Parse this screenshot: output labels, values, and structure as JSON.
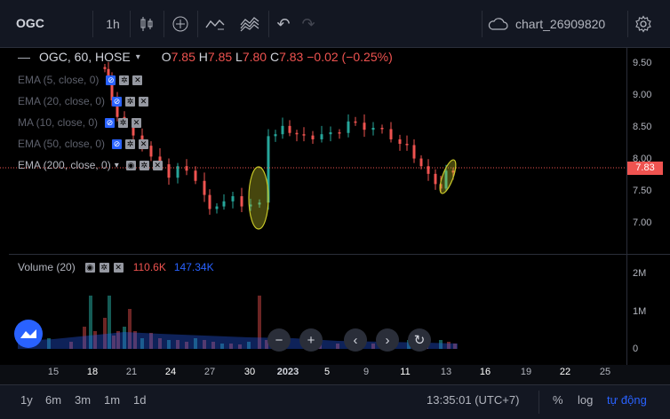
{
  "toolbar": {
    "symbol": "OGC",
    "interval": "1h",
    "chart_name": "chart_26909820"
  },
  "legend": {
    "symbol_line": "OGC, 60, HOSE",
    "open_label": "O",
    "open": "7.85",
    "high_label": "H",
    "high": "7.85",
    "low_label": "L",
    "low": "7.80",
    "close_label": "C",
    "close": "7.83",
    "change": "−0.02 (−0.25%)"
  },
  "indicators": [
    {
      "label": "EMA (5, close, 0)"
    },
    {
      "label": "EMA (20, close, 0)"
    },
    {
      "label": "MA (10, close, 0)"
    },
    {
      "label": "EMA (50, close, 0)"
    },
    {
      "label": "EMA (200, close, 0)"
    }
  ],
  "volume_legend": {
    "label": "Volume (20)",
    "value1": "110.6K",
    "value2": "147.34K"
  },
  "price_axis": [
    "9.50",
    "9.00",
    "8.50",
    "8.00",
    "7.50",
    "7.00"
  ],
  "current_price_tag": "7.83",
  "volume_axis": [
    "2M",
    "1M",
    "0"
  ],
  "time_axis": [
    "15",
    "18",
    "21",
    "24",
    "27",
    "30",
    "2023",
    "5",
    "9",
    "11",
    "13",
    "16",
    "19",
    "22",
    "25"
  ],
  "bottom": {
    "ranges": [
      "1y",
      "6m",
      "3m",
      "1m",
      "1d"
    ],
    "clock": "13:35:01 (UTC+7)",
    "percent": "%",
    "log": "log",
    "auto": "tự động"
  },
  "colors": {
    "up": "#26a69a",
    "down": "#ef5350",
    "accent": "#2962ff",
    "highlight": "#c8c828"
  }
}
